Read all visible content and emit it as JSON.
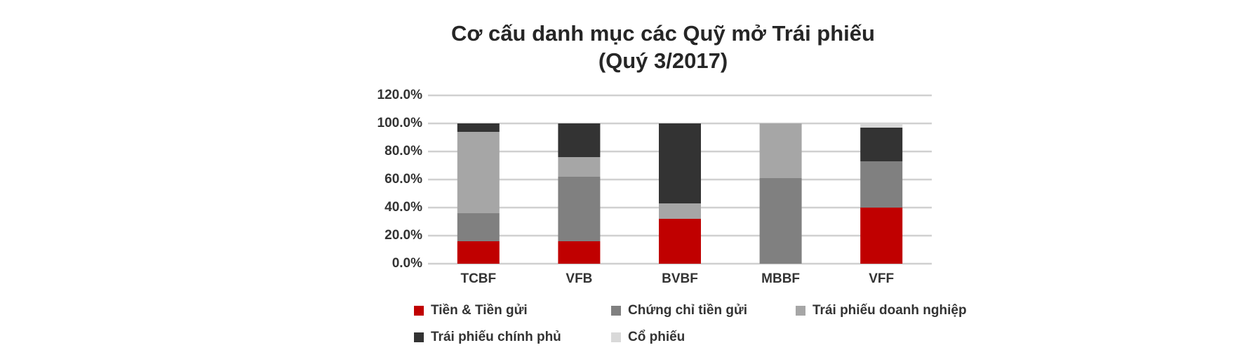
{
  "chart_data": {
    "type": "stacked_bar",
    "title": "Cơ cấu danh mục các Quỹ mở Trái phiếu",
    "subtitle": "(Quý 3/2017)",
    "categories": [
      "TCBF",
      "VFB",
      "BVBF",
      "MBBF",
      "VFF"
    ],
    "series": [
      {
        "name": "Tiền & Tiền gửi",
        "color": "#c00000",
        "values": [
          16,
          16,
          32,
          0,
          40
        ]
      },
      {
        "name": "Chứng chỉ tiền gửi",
        "color": "#808080",
        "values": [
          20,
          46,
          0,
          61,
          33
        ]
      },
      {
        "name": "Trái phiếu doanh nghiệp",
        "color": "#a6a6a6",
        "values": [
          58,
          14,
          11,
          39,
          0
        ]
      },
      {
        "name": "Trái phiếu chính phủ",
        "color": "#333333",
        "values": [
          6,
          24,
          57,
          0,
          24
        ]
      },
      {
        "name": "Cổ phiếu",
        "color": "#d9d9d9",
        "values": [
          0,
          0,
          0,
          0,
          3
        ]
      }
    ],
    "ylim": [
      0,
      120
    ],
    "yticks": [
      {
        "value": 0,
        "label": "0.0%"
      },
      {
        "value": 20,
        "label": "20.0%"
      },
      {
        "value": 40,
        "label": "40.0%"
      },
      {
        "value": 60,
        "label": "60.0%"
      },
      {
        "value": 80,
        "label": "80.0%"
      },
      {
        "value": 100,
        "label": "100.0%"
      },
      {
        "value": 120,
        "label": "120.0%"
      }
    ],
    "grid": true,
    "legend": "bottom"
  }
}
